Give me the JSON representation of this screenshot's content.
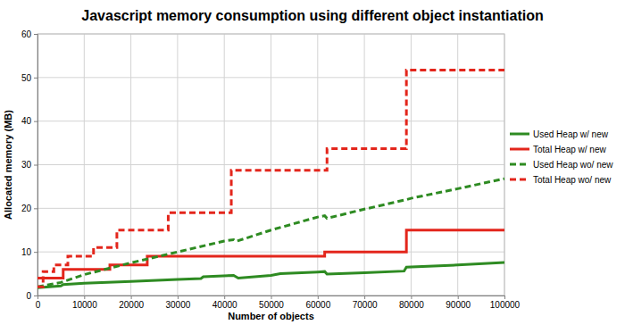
{
  "chart_data": {
    "type": "line",
    "title": "Javascript memory consumption using different object instantiation",
    "x_label": "Number of objects",
    "y_label": "Allocated memory (MB)",
    "xlim": [
      0,
      100000
    ],
    "ylim": [
      0,
      60
    ],
    "xticks": [
      0,
      10000,
      20000,
      30000,
      40000,
      50000,
      60000,
      70000,
      80000,
      90000,
      100000
    ],
    "yticks": [
      0,
      10,
      20,
      30,
      40,
      50,
      60
    ],
    "grid": true,
    "legend": "right",
    "series": [
      {
        "name": "Used Heap w/ new",
        "color": "#2e8b22",
        "line_style": "solid",
        "x": [
          0,
          5000,
          5500,
          10000,
          20000,
          30000,
          35000,
          35500,
          42000,
          43000,
          50000,
          52000,
          60000,
          61500,
          62000,
          70000,
          78500,
          79000,
          90000,
          100000
        ],
        "values": [
          1.8,
          2.2,
          2.5,
          2.8,
          3.2,
          3.7,
          3.9,
          4.3,
          4.6,
          4.0,
          4.6,
          5.0,
          5.4,
          5.5,
          4.9,
          5.2,
          5.6,
          6.5,
          7.0,
          7.6
        ]
      },
      {
        "name": "Total Heap w/ new",
        "color": "#e3261c",
        "line_style": "solid",
        "x": [
          0,
          5500,
          5500,
          15500,
          15500,
          23500,
          23500,
          61500,
          61500,
          79000,
          79000,
          100000
        ],
        "values": [
          4,
          4,
          6,
          6,
          7,
          7,
          9,
          9,
          10,
          10,
          15,
          15
        ]
      },
      {
        "name": "Used Heap wo/ new",
        "color": "#2e8b22",
        "line_style": "dashed",
        "x": [
          0,
          5000,
          10000,
          20000,
          30000,
          40000,
          42000,
          42500,
          50000,
          55000,
          60000,
          61500,
          62000,
          70000,
          79000,
          80000,
          90000,
          100000
        ],
        "values": [
          2,
          3,
          4.8,
          7.5,
          10,
          12.5,
          12.8,
          12.4,
          15,
          16.5,
          18,
          18.3,
          17.7,
          19.8,
          22,
          22.3,
          24.5,
          26.8
        ]
      },
      {
        "name": "Total Heap wo/ new",
        "color": "#e3261c",
        "line_style": "dashed",
        "x": [
          0,
          1200,
          1200,
          3500,
          3500,
          6500,
          6500,
          12000,
          12000,
          17000,
          17000,
          28000,
          28000,
          41500,
          41500,
          62000,
          62000,
          79000,
          79000,
          100000
        ],
        "values": [
          2,
          2,
          5.5,
          5.5,
          7,
          7,
          9,
          9,
          11,
          11,
          15,
          15,
          19,
          19,
          28.7,
          28.7,
          33.7,
          33.7,
          51.7,
          51.7
        ]
      }
    ]
  }
}
